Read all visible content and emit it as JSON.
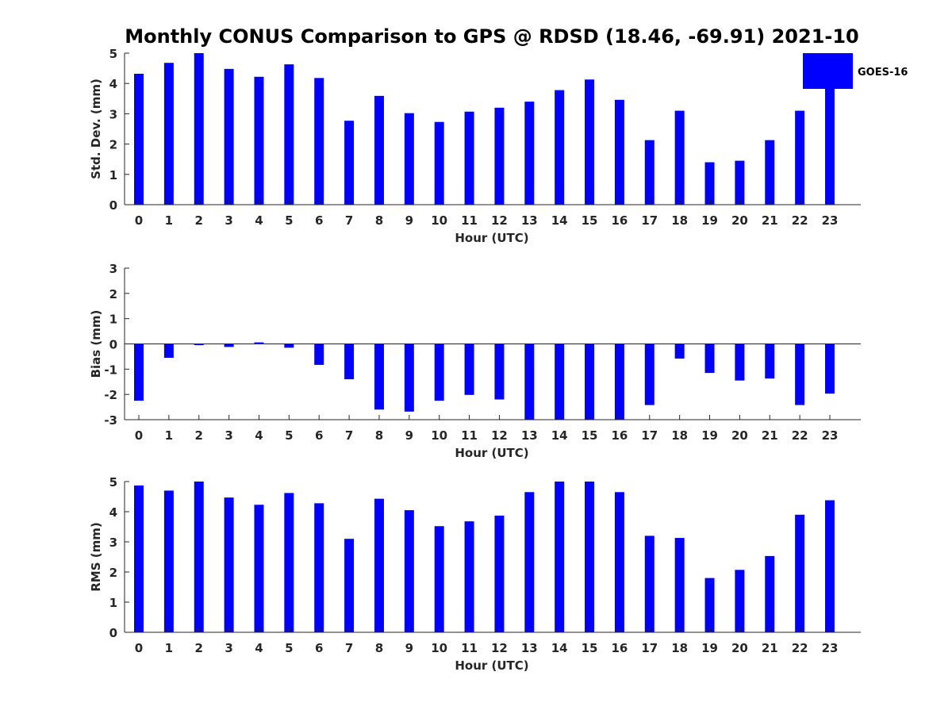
{
  "title": "Monthly CONUS Comparison to GPS @ RDSD (18.46, -69.91) 2021-10",
  "legend": {
    "label": "GOES-16",
    "color": "#0000ff"
  },
  "chart_data": [
    {
      "type": "bar",
      "ylabel": "Std. Dev. (mm)",
      "xlabel": "Hour (UTC)",
      "ylim": [
        0,
        5
      ],
      "yticks": [
        0,
        1,
        2,
        3,
        4,
        5
      ],
      "categories": [
        "0",
        "1",
        "2",
        "3",
        "4",
        "5",
        "6",
        "7",
        "8",
        "9",
        "10",
        "11",
        "12",
        "13",
        "14",
        "15",
        "16",
        "17",
        "18",
        "19",
        "20",
        "21",
        "22",
        "23"
      ],
      "series": [
        {
          "name": "GOES-16",
          "color": "#0000ff",
          "values": [
            4.32,
            4.68,
            5.0,
            4.48,
            4.22,
            4.63,
            4.18,
            2.77,
            3.59,
            3.02,
            2.73,
            3.07,
            3.2,
            3.4,
            3.78,
            4.13,
            3.46,
            2.13,
            3.1,
            1.4,
            1.45,
            2.13,
            3.1,
            3.85
          ]
        }
      ]
    },
    {
      "type": "bar",
      "ylabel": "Bias (mm)",
      "xlabel": "Hour (UTC)",
      "ylim": [
        -3,
        3
      ],
      "yticks": [
        -3,
        -2,
        -1,
        0,
        1,
        2,
        3
      ],
      "categories": [
        "0",
        "1",
        "2",
        "3",
        "4",
        "5",
        "6",
        "7",
        "8",
        "9",
        "10",
        "11",
        "12",
        "13",
        "14",
        "15",
        "16",
        "17",
        "18",
        "19",
        "20",
        "21",
        "22",
        "23"
      ],
      "series": [
        {
          "name": "GOES-16",
          "color": "#0000ff",
          "values": [
            -2.25,
            -0.55,
            -0.05,
            -0.12,
            0.06,
            -0.15,
            -0.83,
            -1.4,
            -2.6,
            -2.68,
            -2.25,
            -2.02,
            -2.2,
            -3.0,
            -3.0,
            -3.0,
            -3.0,
            -2.42,
            -0.58,
            -1.15,
            -1.45,
            -1.37,
            -2.42,
            -1.97
          ]
        }
      ]
    },
    {
      "type": "bar",
      "ylabel": "RMS (mm)",
      "xlabel": "Hour (UTC)",
      "ylim": [
        0,
        5
      ],
      "yticks": [
        0,
        1,
        2,
        3,
        4,
        5
      ],
      "categories": [
        "0",
        "1",
        "2",
        "3",
        "4",
        "5",
        "6",
        "7",
        "8",
        "9",
        "10",
        "11",
        "12",
        "13",
        "14",
        "15",
        "16",
        "17",
        "18",
        "19",
        "20",
        "21",
        "22",
        "23"
      ],
      "series": [
        {
          "name": "GOES-16",
          "color": "#0000ff",
          "values": [
            4.87,
            4.7,
            5.0,
            4.47,
            4.23,
            4.62,
            4.28,
            3.1,
            4.43,
            4.05,
            3.52,
            3.68,
            3.87,
            4.65,
            5.0,
            5.0,
            4.65,
            3.2,
            3.13,
            1.8,
            2.07,
            2.53,
            3.9,
            4.38
          ]
        }
      ]
    }
  ]
}
